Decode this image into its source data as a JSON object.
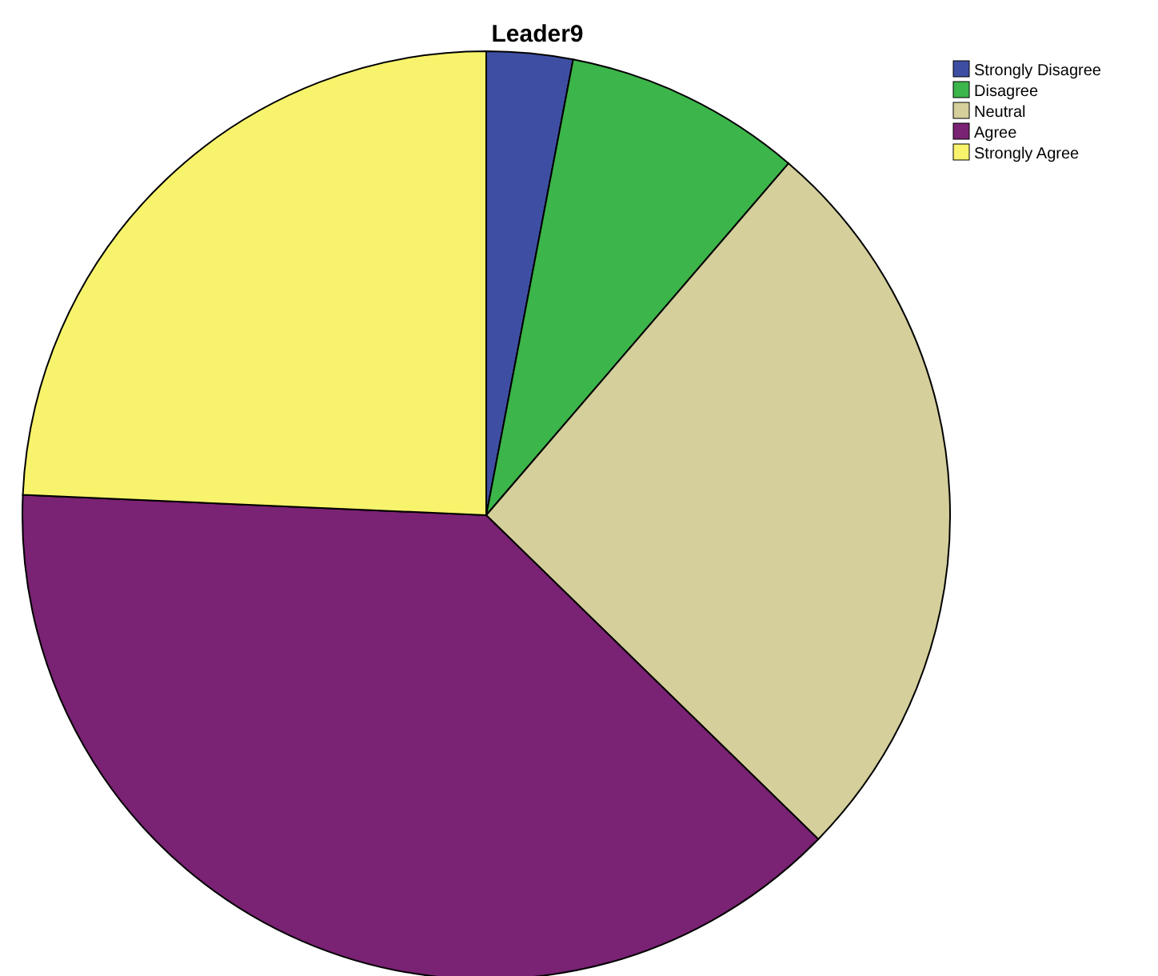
{
  "chart_data": {
    "type": "pie",
    "title": "Leader9",
    "categories": [
      "Strongly Disagree",
      "Disagree",
      "Neutral",
      "Agree",
      "Strongly Agree"
    ],
    "values": [
      3.0,
      8.3,
      26.0,
      38.4,
      24.3
    ],
    "colors": [
      "#3e4fa3",
      "#3cb54a",
      "#d4cf9b",
      "#7a2273",
      "#f7f36c"
    ],
    "legend": "top right"
  }
}
